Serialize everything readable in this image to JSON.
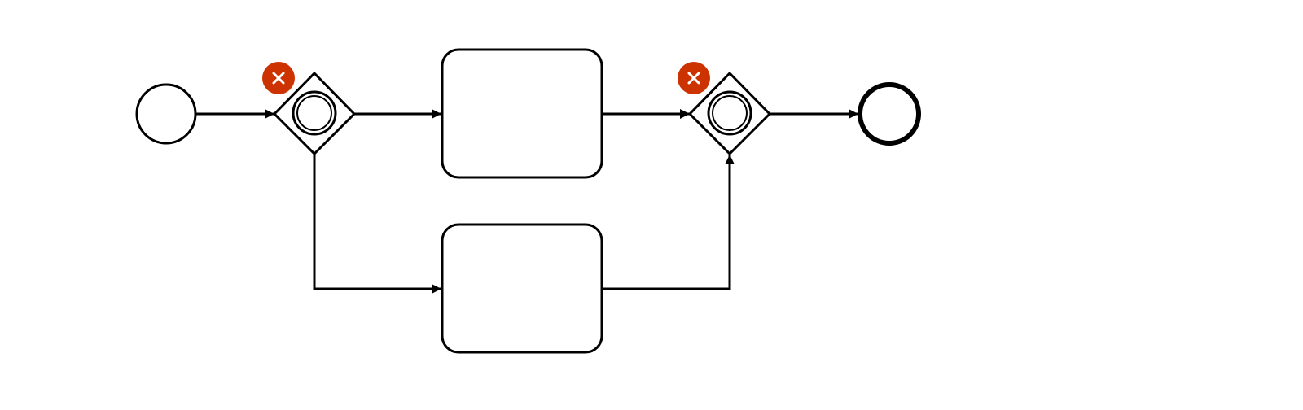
{
  "diagram": {
    "type": "bpmn",
    "colors": {
      "stroke": "#000000",
      "fill": "#ffffff",
      "error_badge": "#cc3300",
      "error_badge_icon": "#ffffff"
    },
    "elements": [
      {
        "id": "start_event",
        "kind": "start-event",
        "label": ""
      },
      {
        "id": "gateway_split",
        "kind": "event-based-gateway",
        "label": "",
        "has_error_marker": true
      },
      {
        "id": "task_top",
        "kind": "task",
        "label": ""
      },
      {
        "id": "task_bottom",
        "kind": "task",
        "label": ""
      },
      {
        "id": "gateway_join",
        "kind": "event-based-gateway",
        "label": "",
        "has_error_marker": true
      },
      {
        "id": "end_event",
        "kind": "end-event",
        "label": ""
      }
    ],
    "flows": [
      {
        "from": "start_event",
        "to": "gateway_split"
      },
      {
        "from": "gateway_split",
        "to": "task_top"
      },
      {
        "from": "gateway_split",
        "to": "task_bottom"
      },
      {
        "from": "task_top",
        "to": "gateway_join"
      },
      {
        "from": "task_bottom",
        "to": "gateway_join"
      },
      {
        "from": "gateway_join",
        "to": "end_event"
      }
    ],
    "error_marker_icon": "close-icon"
  }
}
